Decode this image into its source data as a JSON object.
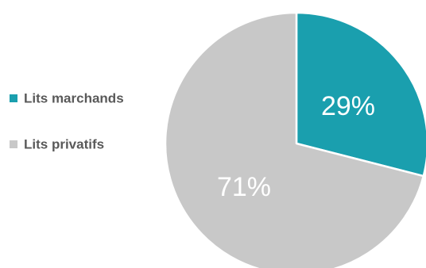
{
  "chart_data": {
    "type": "pie",
    "title": "",
    "start_angle_deg": 0,
    "direction": "clockwise",
    "legend_position": "left",
    "categories": [
      "Lits marchands",
      "Lits privatifs"
    ],
    "values": [
      29,
      71
    ],
    "labels": [
      "29%",
      "71%"
    ],
    "colors": [
      "#1a9fae",
      "#c8c8c8"
    ]
  }
}
